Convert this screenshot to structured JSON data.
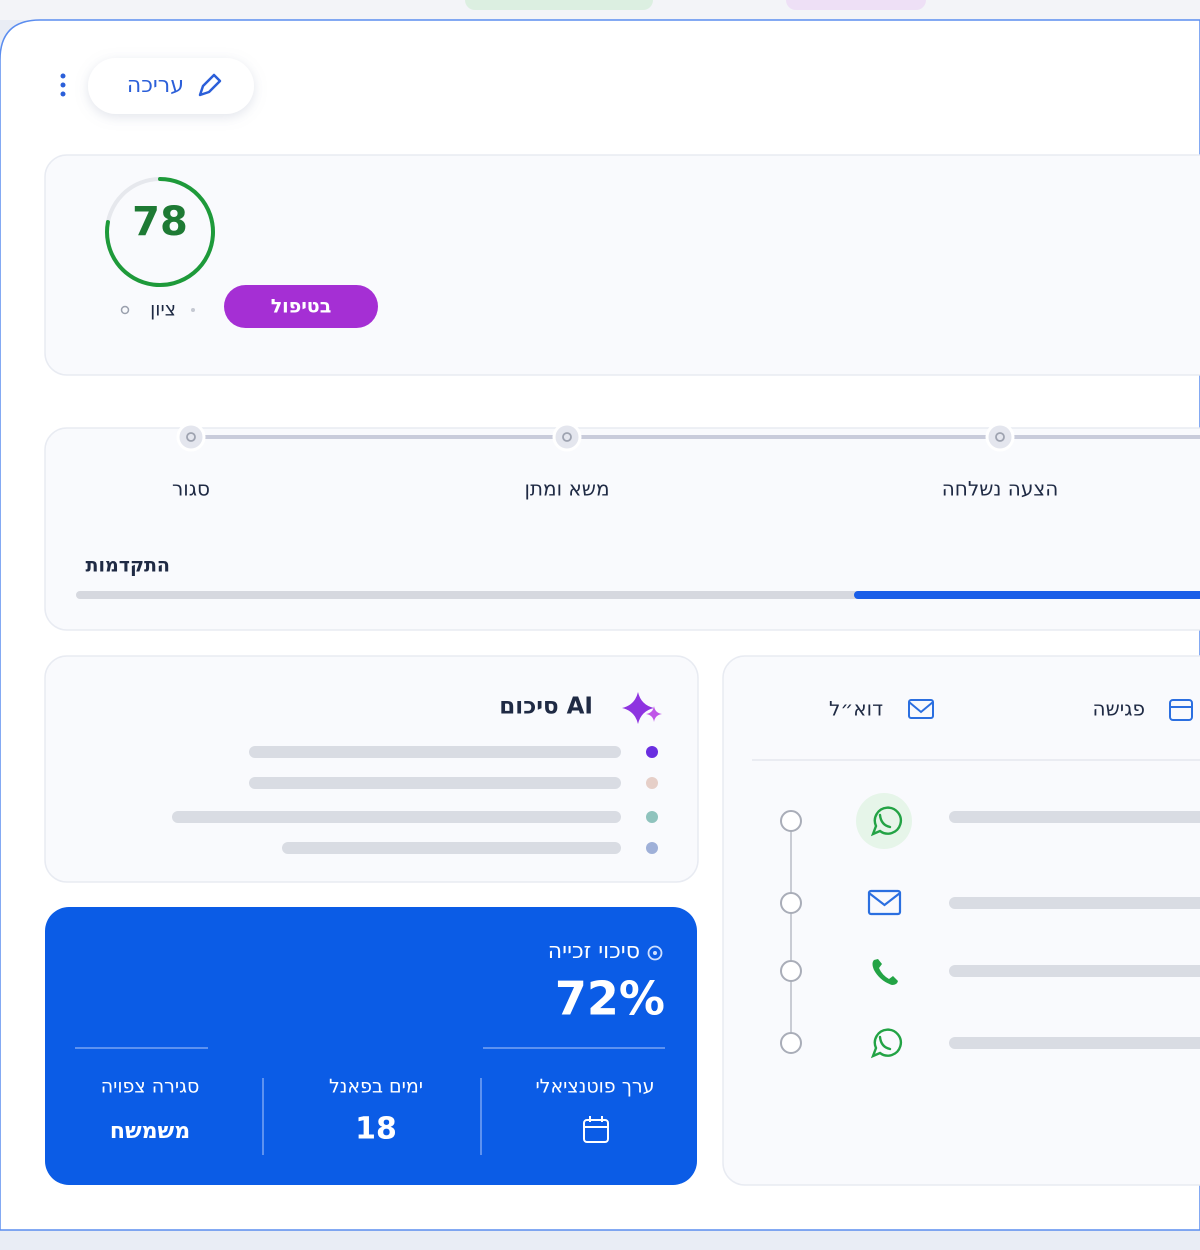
{
  "toolbar": {
    "edit": "עריכה"
  },
  "score": {
    "value": 78,
    "label": "ציון",
    "status": "בטיפול"
  },
  "pipeline": {
    "stages": [
      "סגור",
      "משא ומתן",
      "הצעה נשלחה"
    ],
    "progress_label": "התקדמות"
  },
  "ai_summary": {
    "title": "סיכום AI"
  },
  "win_chance": {
    "title": "סיכוי זכייה",
    "value": "72%",
    "stats": [
      {
        "label": "ערך פוטנציאלי"
      },
      {
        "label": "ימים בפאנל",
        "value": "18"
      },
      {
        "label": "סגירה צפויה",
        "value": "משמשח"
      }
    ]
  },
  "activity": {
    "tabs": [
      "דוא״ל",
      "פגישה"
    ]
  }
}
